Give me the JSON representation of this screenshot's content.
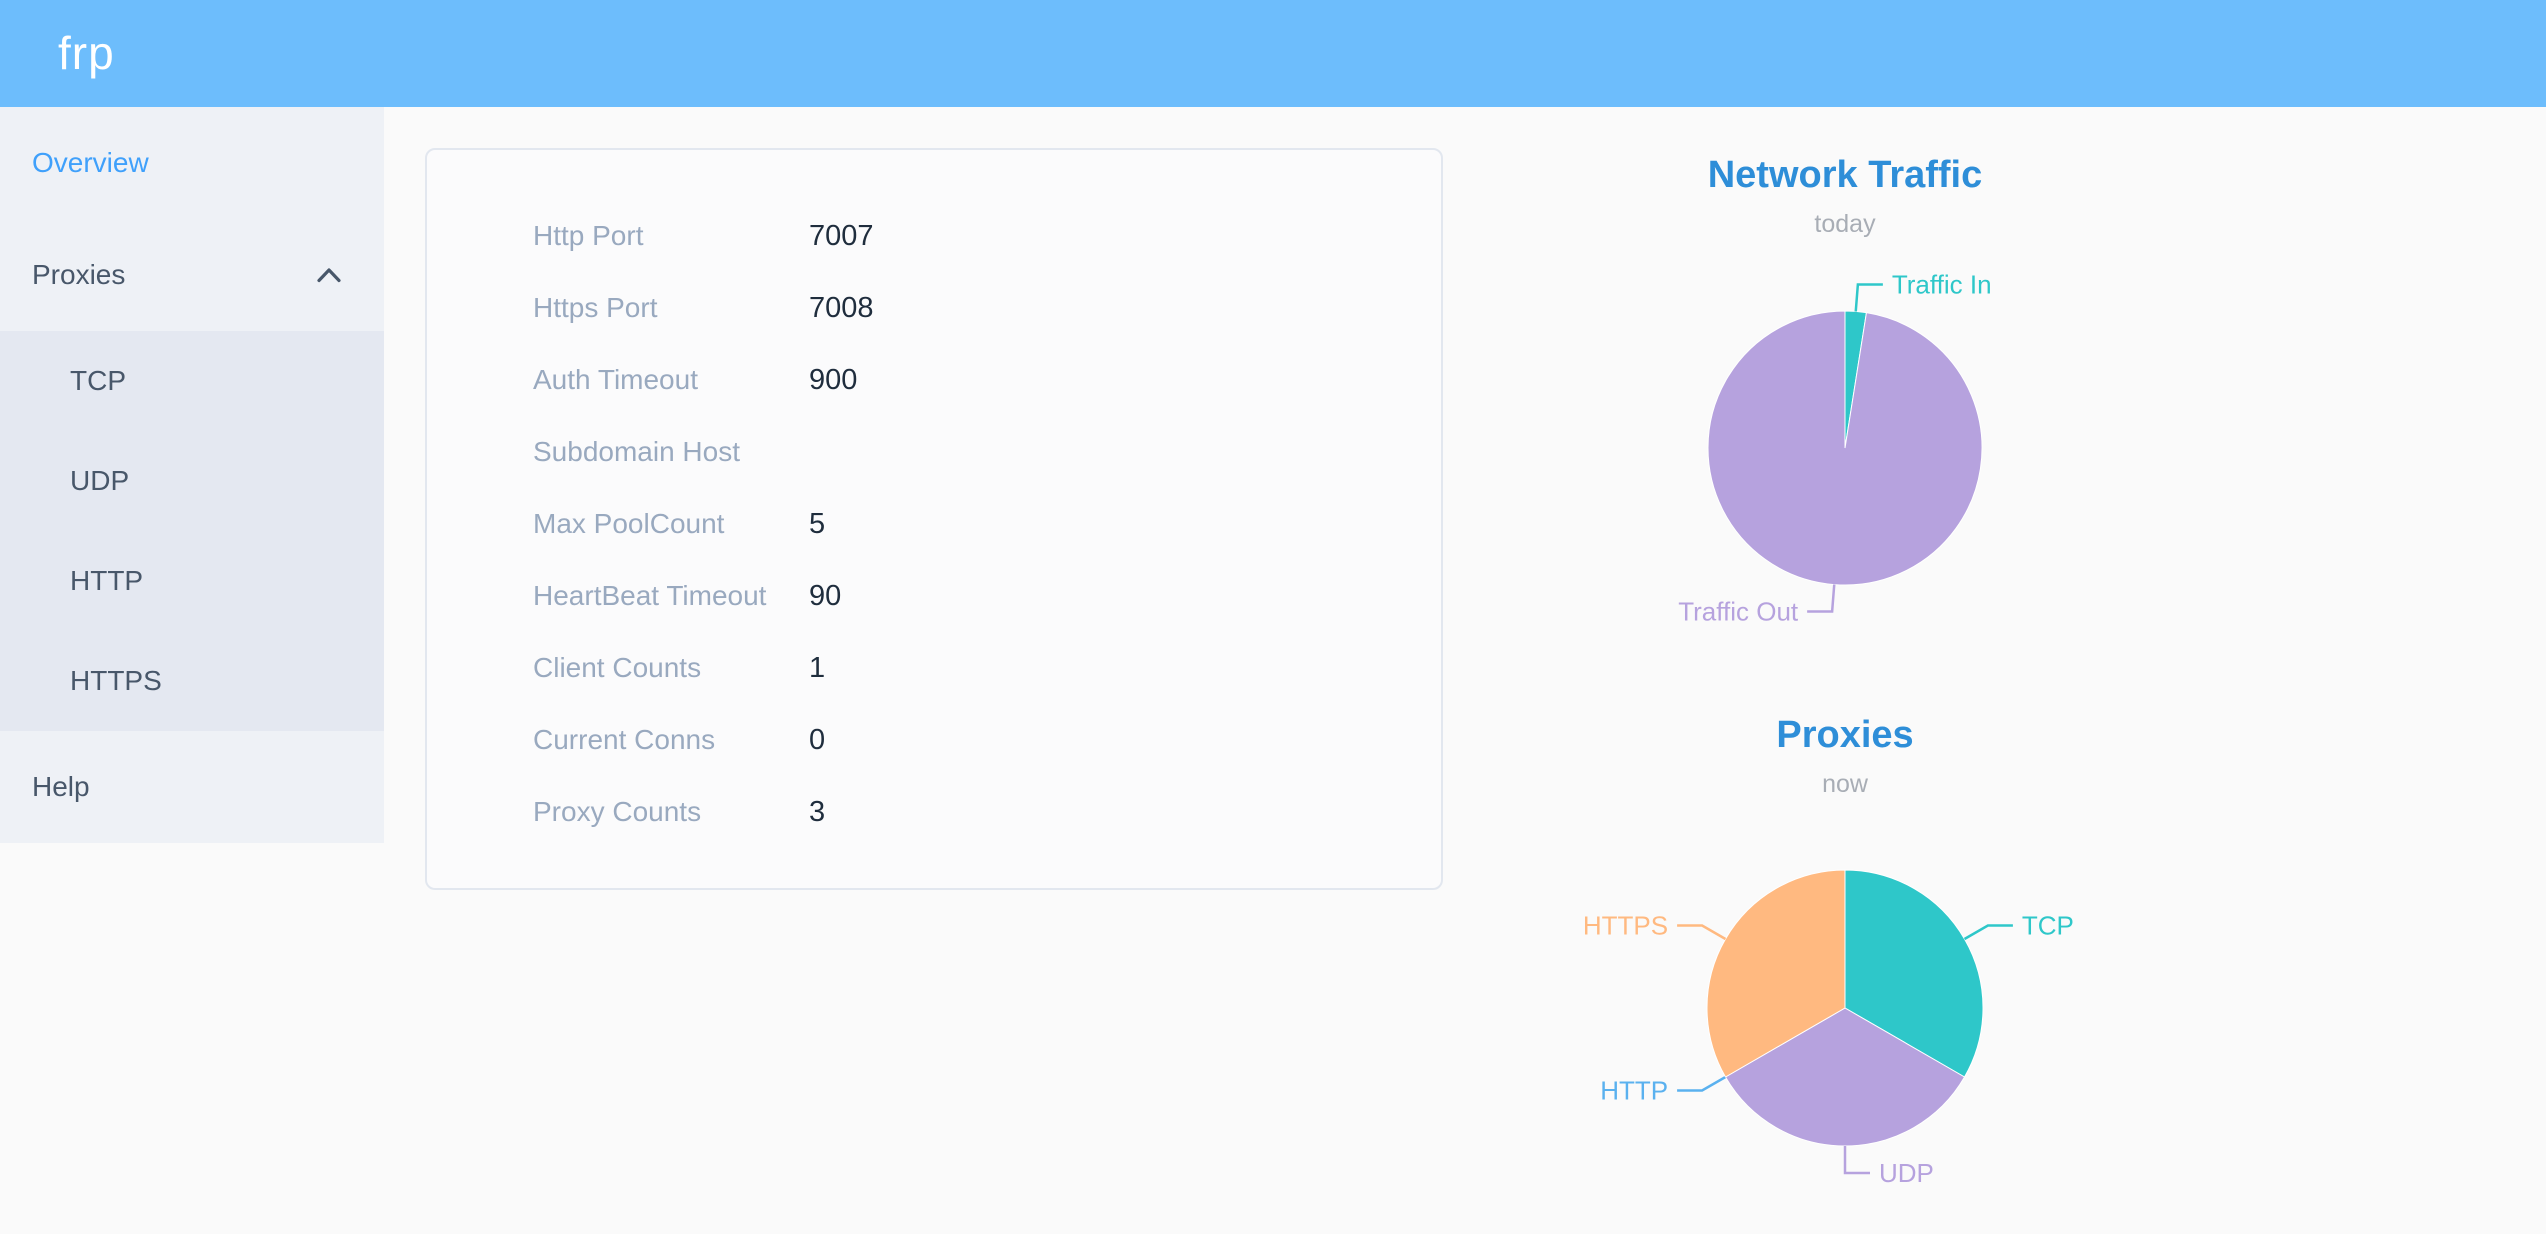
{
  "header": {
    "logo": "frp"
  },
  "sidebar": {
    "items": [
      {
        "label": "Overview",
        "active": true
      },
      {
        "label": "Proxies",
        "expanded": true
      },
      {
        "label": "Help"
      }
    ],
    "proxies_children": [
      "TCP",
      "UDP",
      "HTTP",
      "HTTPS"
    ]
  },
  "overview_card": {
    "rows": [
      {
        "label": "Http Port",
        "value": "7007"
      },
      {
        "label": "Https Port",
        "value": "7008"
      },
      {
        "label": "Auth Timeout",
        "value": "900"
      },
      {
        "label": "Subdomain Host",
        "value": ""
      },
      {
        "label": "Max PoolCount",
        "value": "5"
      },
      {
        "label": "HeartBeat Timeout",
        "value": "90"
      },
      {
        "label": "Client Counts",
        "value": "1"
      },
      {
        "label": "Current Conns",
        "value": "0"
      },
      {
        "label": "Proxy Counts",
        "value": "3"
      }
    ]
  },
  "chart_data": [
    {
      "type": "pie",
      "title": "Network Traffic",
      "subtitle": "today",
      "legend_position": "callout-labels",
      "slices": [
        {
          "label": "Traffic In",
          "value": 2.5,
          "color": "#2ec7c9"
        },
        {
          "label": "Traffic Out",
          "value": 97.5,
          "color": "#b6a2de"
        }
      ]
    },
    {
      "type": "pie",
      "title": "Proxies",
      "subtitle": "now",
      "legend_position": "callout-labels",
      "slices": [
        {
          "label": "TCP",
          "value": 1,
          "color": "#2ec7c9"
        },
        {
          "label": "UDP",
          "value": 1,
          "color": "#b6a2de"
        },
        {
          "label": "HTTP",
          "value": 0,
          "color": "#5ab1ef"
        },
        {
          "label": "HTTPS",
          "value": 1,
          "color": "#ffb980"
        }
      ]
    }
  ],
  "colors": {
    "header_bg": "#6dbdfc",
    "sidebar_bg": "#eef1f6",
    "submenu_bg": "#e4e8f1",
    "menu_text": "#48576a",
    "menu_active": "#3fa0fb",
    "chart_title": "#2e8ed8",
    "card_label": "#99a9bf",
    "card_value": "#1f2d3d"
  }
}
